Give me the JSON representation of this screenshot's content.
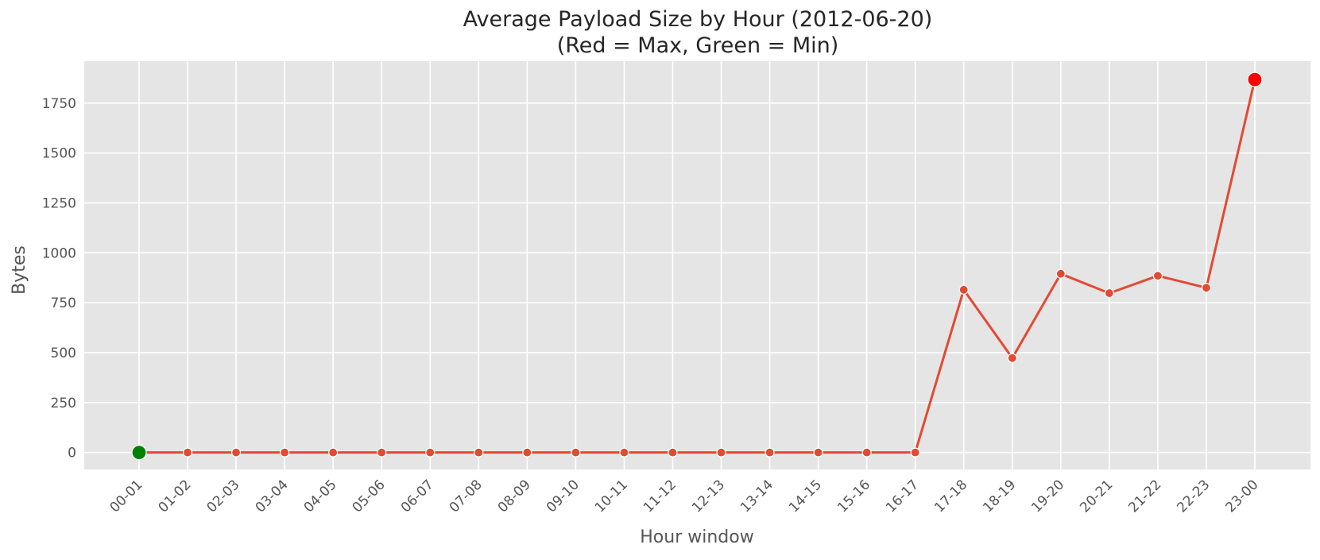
{
  "chart_data": {
    "type": "line",
    "title": "Average Payload Size by Hour  (2012-06-20)",
    "subtitle": "(Red = Max, Green = Min)",
    "xlabel": "Hour window",
    "ylabel": "Bytes",
    "categories": [
      "00-01",
      "01-02",
      "02-03",
      "03-04",
      "04-05",
      "05-06",
      "06-07",
      "07-08",
      "08-09",
      "09-10",
      "10-11",
      "11-12",
      "12-13",
      "13-14",
      "14-15",
      "15-16",
      "16-17",
      "17-18",
      "18-19",
      "19-20",
      "20-21",
      "21-22",
      "22-23",
      "23-00"
    ],
    "values": [
      0,
      0,
      0,
      0,
      0,
      0,
      0,
      0,
      0,
      0,
      0,
      0,
      0,
      0,
      0,
      0,
      0,
      815,
      473,
      895,
      798,
      885,
      825,
      1868
    ],
    "ylim": [
      -85,
      1960
    ],
    "yticks": [
      0,
      250,
      500,
      750,
      1000,
      1250,
      1500,
      1750
    ],
    "grid": true,
    "max_index": 23,
    "min_index": 0,
    "colors": {
      "line": "#E24A33",
      "max": "#FF0000",
      "min": "#008000",
      "plot_bg": "#E5E5E5",
      "grid": "#FFFFFF"
    }
  }
}
